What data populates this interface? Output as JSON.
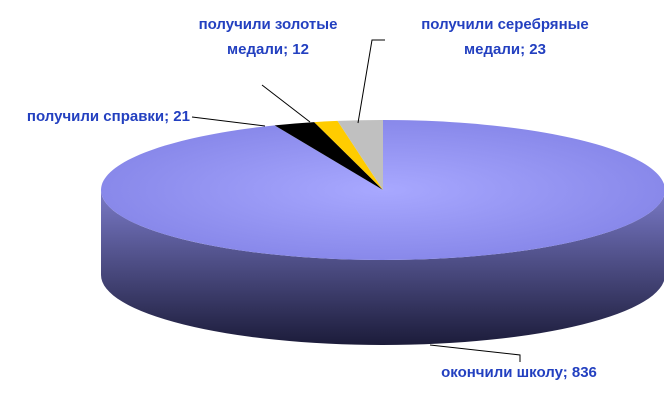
{
  "chart_data": {
    "type": "pie",
    "values": [
      836,
      21,
      12,
      23
    ],
    "value_labels": [
      [
        "окончили школу; 836"
      ],
      [
        "получили справки; 21"
      ],
      [
        "получили золотые",
        "медали; 12"
      ],
      [
        "получили серебряные",
        "медали; 23"
      ]
    ],
    "colors": [
      "#9999ff",
      "#000000",
      "#ffcc00",
      "#c0c0c0"
    ]
  }
}
